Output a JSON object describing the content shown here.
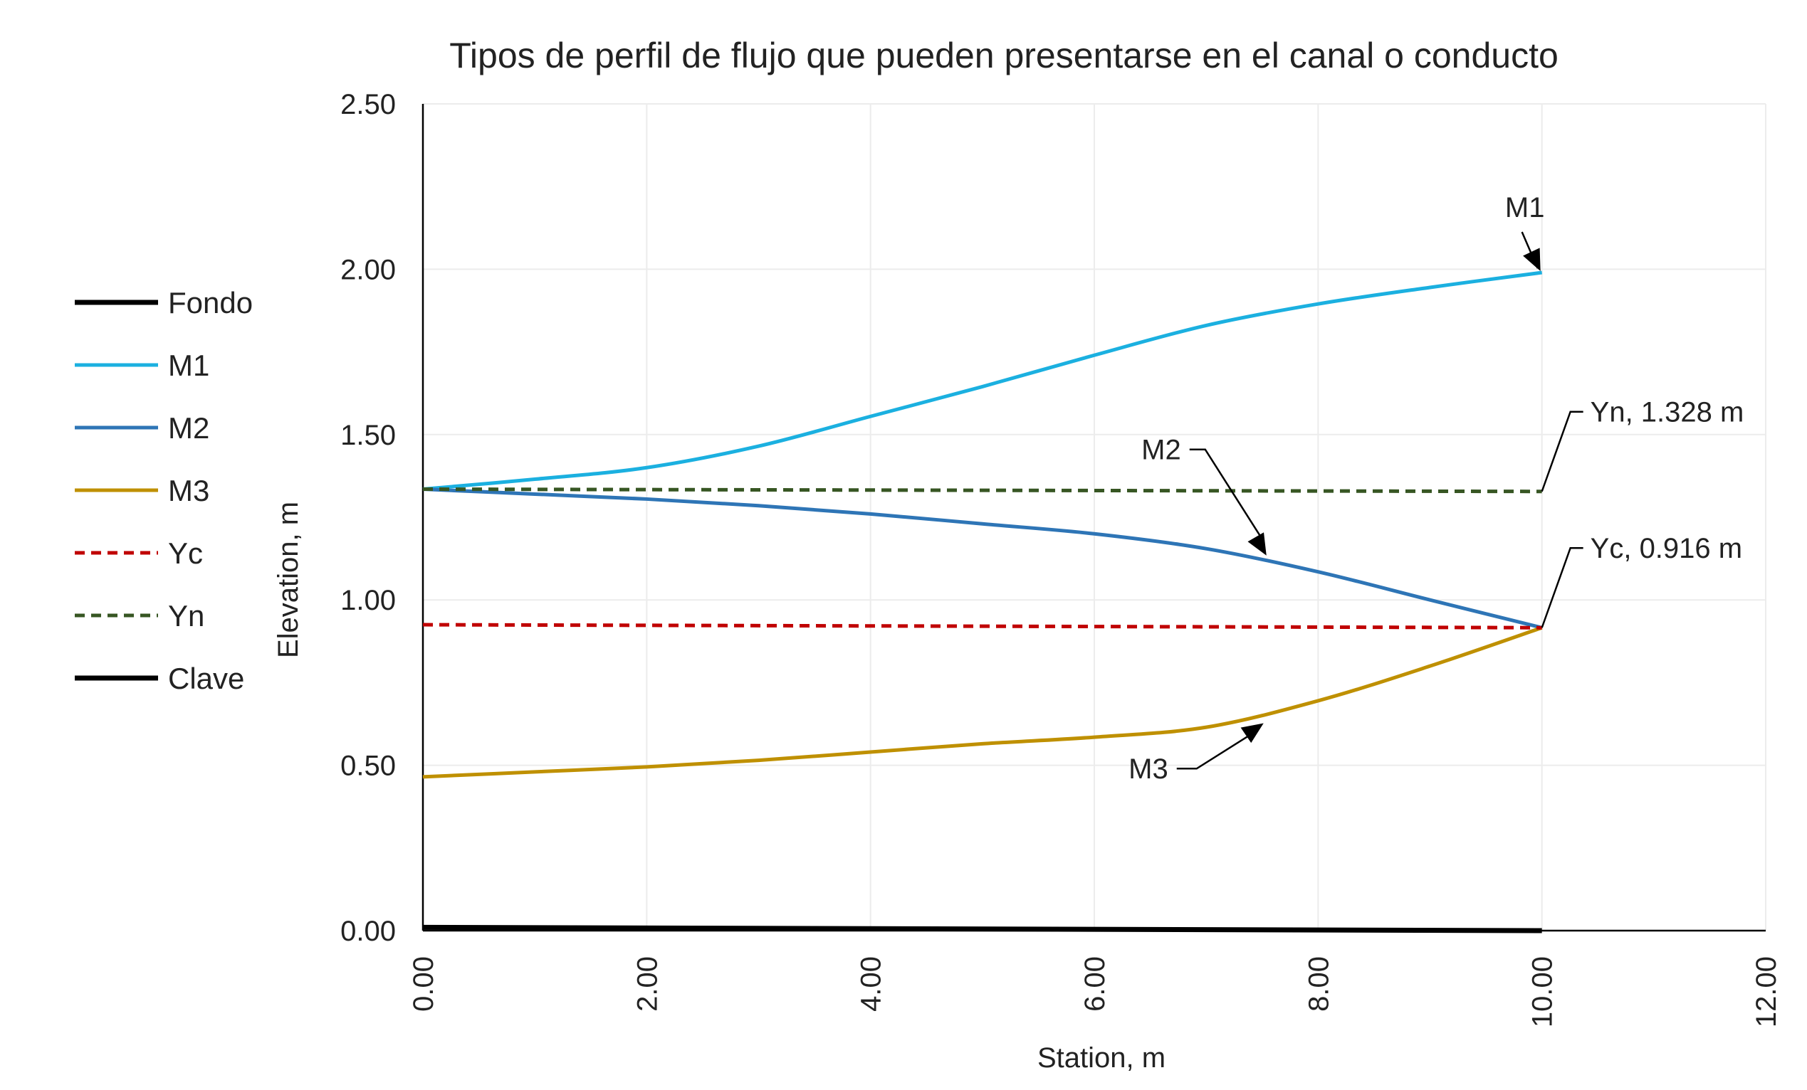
{
  "chart_data": {
    "type": "line",
    "title": "Tipos de perfil de flujo que pueden presentarse en el canal o conducto",
    "xlabel": "Station, m",
    "ylabel": "Elevation, m",
    "xlim": [
      0,
      12
    ],
    "ylim": [
      0,
      2.5
    ],
    "x_ticks": [
      "0.00",
      "2.00",
      "4.00",
      "6.00",
      "8.00",
      "10.00",
      "12.00"
    ],
    "y_ticks": [
      "0.00",
      "0.50",
      "1.00",
      "1.50",
      "2.00",
      "2.50"
    ],
    "x_tick_values": [
      0,
      2,
      4,
      6,
      8,
      10,
      12
    ],
    "y_tick_values": [
      0,
      0.5,
      1,
      1.5,
      2,
      2.5
    ],
    "grid": true,
    "legend_position": "left",
    "series": [
      {
        "name": "Fondo",
        "color": "#000000",
        "dash": "solid",
        "x": [
          0,
          10
        ],
        "y": [
          0.01,
          0.0
        ]
      },
      {
        "name": "M1",
        "color": "#1BB0E0",
        "dash": "solid",
        "x": [
          0,
          1,
          2,
          3,
          4,
          5,
          6,
          7,
          8,
          9,
          10
        ],
        "y": [
          1.335,
          1.365,
          1.4,
          1.465,
          1.555,
          1.645,
          1.74,
          1.83,
          1.895,
          1.945,
          1.99
        ]
      },
      {
        "name": "M2",
        "color": "#2E75B6",
        "dash": "solid",
        "x": [
          0,
          1,
          2,
          3,
          4,
          5,
          6,
          7,
          8,
          9,
          10
        ],
        "y": [
          1.335,
          1.32,
          1.305,
          1.285,
          1.26,
          1.23,
          1.2,
          1.155,
          1.085,
          1.0,
          0.916
        ]
      },
      {
        "name": "M3",
        "color": "#BF9000",
        "dash": "solid",
        "x": [
          0,
          1,
          2,
          3,
          4,
          5,
          6,
          7,
          8,
          9,
          10
        ],
        "y": [
          0.465,
          0.48,
          0.495,
          0.515,
          0.54,
          0.565,
          0.585,
          0.615,
          0.695,
          0.8,
          0.916
        ]
      },
      {
        "name": "Yc",
        "color": "#C00000",
        "dash": "dashed",
        "x": [
          0,
          10
        ],
        "y": [
          0.925,
          0.916
        ]
      },
      {
        "name": "Yn",
        "color": "#375623",
        "dash": "dashed",
        "x": [
          0,
          10
        ],
        "y": [
          1.335,
          1.328
        ]
      },
      {
        "name": "Clave",
        "color": "#000000",
        "dash": "solid",
        "x": [],
        "y": []
      }
    ],
    "annotations": [
      {
        "text": "M1",
        "type": "arrow",
        "target": [
          10,
          1.99
        ]
      },
      {
        "text": "M2",
        "type": "arrow",
        "target": [
          7.5,
          1.13
        ]
      },
      {
        "text": "M3",
        "type": "arrow",
        "target": [
          7.5,
          0.64
        ]
      },
      {
        "text": "Yn, 1.328 m",
        "type": "leader",
        "target": [
          10,
          1.328
        ]
      },
      {
        "text": "Yc, 0.916 m",
        "type": "leader",
        "target": [
          10,
          0.916
        ]
      }
    ]
  }
}
